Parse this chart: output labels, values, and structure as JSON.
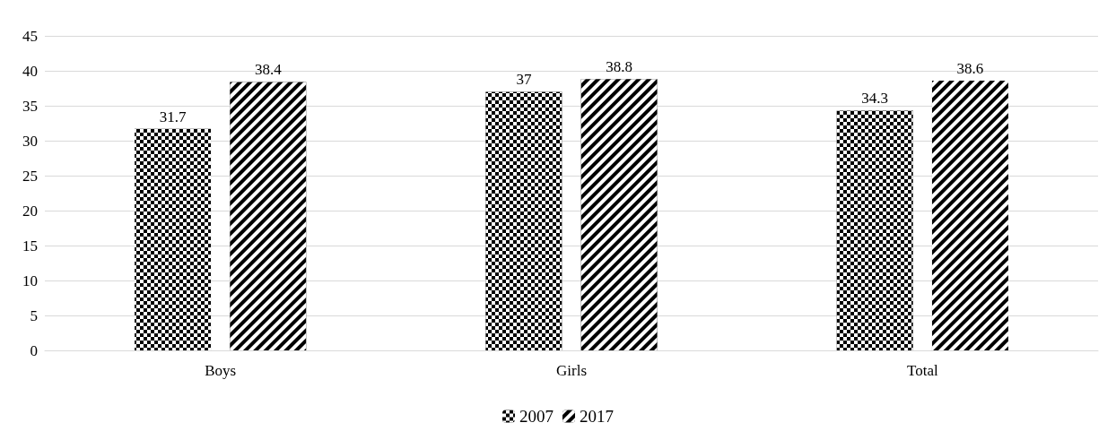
{
  "chart_data": {
    "type": "bar",
    "categories": [
      "Boys",
      "Girls",
      "Total"
    ],
    "series": [
      {
        "name": "2007",
        "color": "#000000",
        "values": [
          31.7,
          37,
          34.3
        ]
      },
      {
        "name": "2017",
        "color": "#000000",
        "values": [
          38.4,
          38.8,
          38.6
        ]
      }
    ],
    "ylim": [
      0,
      45
    ],
    "yticks": [
      0,
      5,
      10,
      15,
      20,
      25,
      30,
      35,
      40,
      45
    ],
    "grid": "y",
    "legend": "bottom",
    "data_labels": true
  }
}
